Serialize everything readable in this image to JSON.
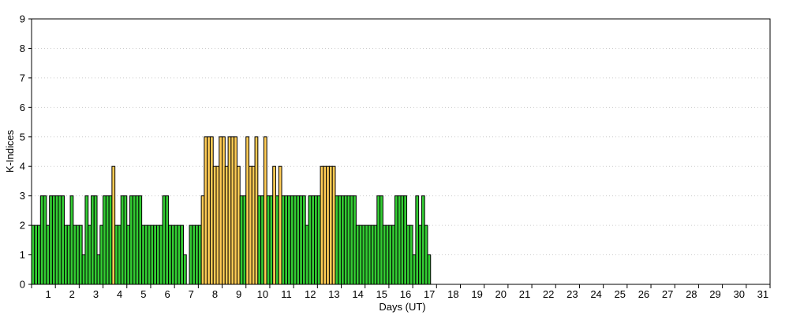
{
  "chart_data": {
    "type": "bar",
    "title": "",
    "xlabel": "Days (UT)",
    "ylabel": "K-Indices",
    "ylim": [
      0,
      9
    ],
    "yticks": [
      "0",
      "1",
      "2",
      "3",
      "4",
      "5",
      "6",
      "7",
      "8",
      "9"
    ],
    "xticks": [
      "1",
      "2",
      "3",
      "4",
      "5",
      "6",
      "7",
      "8",
      "9",
      "10",
      "11",
      "12",
      "13",
      "14",
      "15",
      "16",
      "17",
      "18",
      "19",
      "20",
      "21",
      "22",
      "23",
      "24",
      "25",
      "26",
      "27",
      "28",
      "29",
      "30",
      "31"
    ],
    "days_in_month": 31,
    "bins_per_day": 8,
    "grid": true,
    "colors": {
      "green": "#33cc33",
      "yellow": "#ffcc55",
      "missing": "#ffffff"
    },
    "color_rule": "green for K < 4 on quiet days; yellow marks storm periods",
    "values": [
      2,
      2,
      2,
      3,
      3,
      2,
      3,
      3,
      3,
      3,
      3,
      2,
      2,
      3,
      2,
      2,
      2,
      1,
      3,
      2,
      3,
      3,
      1,
      2,
      3,
      3,
      3,
      4,
      2,
      2,
      3,
      3,
      2,
      3,
      3,
      3,
      3,
      2,
      2,
      2,
      2,
      2,
      2,
      2,
      3,
      3,
      2,
      2,
      2,
      2,
      2,
      1,
      null,
      2,
      2,
      2,
      2,
      3,
      5,
      5,
      5,
      4,
      4,
      5,
      5,
      4,
      5,
      5,
      5,
      4,
      3,
      3,
      5,
      4,
      4,
      5,
      3,
      3,
      5,
      3,
      3,
      4,
      3,
      4,
      3,
      3,
      3,
      3,
      3,
      3,
      3,
      3,
      2,
      3,
      3,
      3,
      3,
      4,
      4,
      4,
      4,
      4,
      3,
      3,
      3,
      3,
      3,
      3,
      3,
      2,
      2,
      2,
      2,
      2,
      2,
      2,
      3,
      3,
      2,
      2,
      2,
      2,
      3,
      3,
      3,
      3,
      2,
      2,
      1,
      3,
      2,
      3,
      2,
      1
    ],
    "colors_per_bar": [
      "g",
      "g",
      "g",
      "g",
      "g",
      "g",
      "g",
      "g",
      "g",
      "g",
      "g",
      "g",
      "g",
      "g",
      "g",
      "g",
      "g",
      "g",
      "g",
      "g",
      "g",
      "g",
      "g",
      "g",
      "g",
      "g",
      "g",
      "y",
      "g",
      "g",
      "g",
      "g",
      "g",
      "g",
      "g",
      "g",
      "g",
      "g",
      "g",
      "g",
      "g",
      "g",
      "g",
      "g",
      "g",
      "g",
      "g",
      "g",
      "g",
      "g",
      "g",
      "g",
      "g",
      "g",
      "g",
      "g",
      "g",
      "y",
      "y",
      "y",
      "y",
      "y",
      "y",
      "y",
      "y",
      "y",
      "y",
      "y",
      "y",
      "y",
      "g",
      "g",
      "y",
      "y",
      "y",
      "y",
      "g",
      "g",
      "y",
      "g",
      "g",
      "y",
      "g",
      "y",
      "g",
      "g",
      "g",
      "g",
      "g",
      "g",
      "g",
      "g",
      "g",
      "g",
      "g",
      "g",
      "g",
      "y",
      "y",
      "y",
      "y",
      "y",
      "g",
      "g",
      "g",
      "g",
      "g",
      "g",
      "g",
      "g",
      "g",
      "g",
      "g",
      "g",
      "g",
      "g",
      "g",
      "g",
      "g",
      "g",
      "g",
      "g",
      "g",
      "g",
      "g",
      "g",
      "g",
      "g",
      "g",
      "g",
      "g",
      "g",
      "g",
      "g"
    ]
  }
}
